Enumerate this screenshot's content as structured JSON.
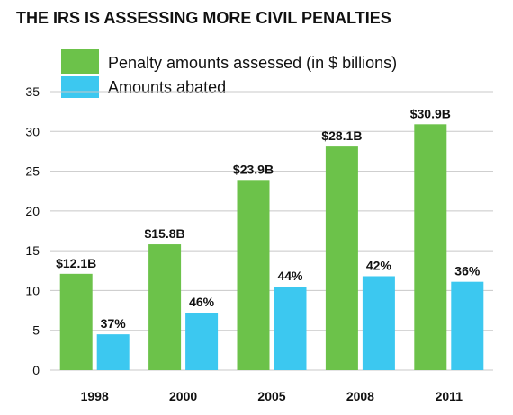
{
  "chart_data": {
    "type": "bar",
    "title": "THE IRS IS ASSESSING MORE CIVIL PENALTIES",
    "categories": [
      "1998",
      "2000",
      "2005",
      "2008",
      "2011"
    ],
    "series": [
      {
        "name": "Penalty amounts assessed (in $ billions)",
        "color": "#6cc24a",
        "values": [
          12.1,
          15.8,
          23.9,
          28.1,
          30.9
        ],
        "labels": [
          "$12.1B",
          "$15.8B",
          "$23.9B",
          "$28.1B",
          "$30.9B"
        ]
      },
      {
        "name": "Amounts abated",
        "color": "#3cc8f0",
        "values": [
          4.5,
          7.2,
          10.5,
          11.8,
          11.1
        ],
        "labels": [
          "37%",
          "46%",
          "44%",
          "42%",
          "36%"
        ]
      }
    ],
    "ylim": [
      0,
      35
    ],
    "yticks": [
      0,
      5,
      10,
      15,
      20,
      25,
      30,
      35
    ],
    "xlabel": "",
    "ylabel": "",
    "grid": true,
    "legend_position": "top-left"
  }
}
